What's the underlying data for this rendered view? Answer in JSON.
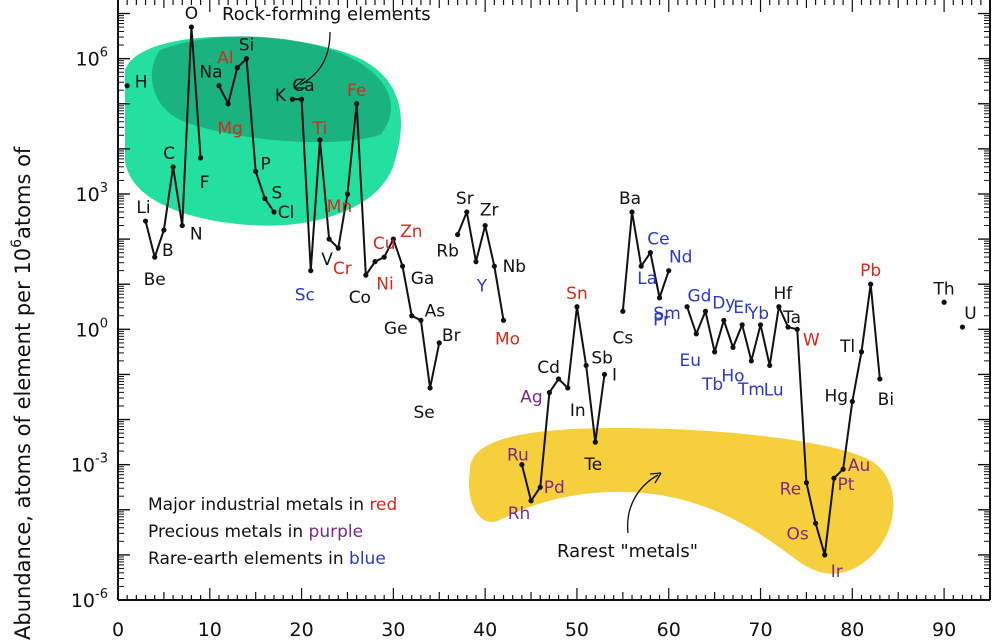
{
  "chart_data": {
    "type": "line",
    "ylabel_text": "Abundance, atoms of element per 10",
    "ylabel_sup": "6",
    "ylabel_suffix": "atoms of",
    "xlim": [
      0,
      95
    ],
    "ylim_log10": [
      -6,
      7.3
    ],
    "y_scale": "log",
    "x_ticks": [
      0,
      10,
      20,
      30,
      40,
      50,
      60,
      70,
      80,
      90
    ],
    "y_ticks": [
      {
        "base": "10",
        "exp": "6",
        "log": 6
      },
      {
        "base": "10",
        "exp": "3",
        "log": 3
      },
      {
        "base": "10",
        "exp": "0",
        "log": 0
      },
      {
        "base": "10",
        "exp": "-3",
        "log": -3
      },
      {
        "base": "10",
        "exp": "-6",
        "log": -6
      }
    ],
    "colors": {
      "industrial": "#d42a1a",
      "precious": "#7a2a8a",
      "rare_earth": "#2a3ac8",
      "other": "#111111",
      "rock_region": "#23e0a0",
      "rock_region_dark": "#17a070",
      "rare_region": "#f5cf3c"
    },
    "points": [
      {
        "z": 1,
        "sym": "H",
        "log": 5.4,
        "cat": "other"
      },
      {
        "z": 3,
        "sym": "Li",
        "log": 2.4,
        "cat": "other"
      },
      {
        "z": 4,
        "sym": "Be",
        "log": 1.6,
        "cat": "other"
      },
      {
        "z": 5,
        "sym": "B",
        "log": 2.2,
        "cat": "other"
      },
      {
        "z": 6,
        "sym": "C",
        "log": 3.6,
        "cat": "other"
      },
      {
        "z": 7,
        "sym": "N",
        "log": 2.3,
        "cat": "other"
      },
      {
        "z": 8,
        "sym": "O",
        "log": 6.7,
        "cat": "other"
      },
      {
        "z": 9,
        "sym": "F",
        "log": 3.8,
        "cat": "other"
      },
      {
        "z": 11,
        "sym": "Na",
        "log": 5.4,
        "cat": "other"
      },
      {
        "z": 12,
        "sym": "Mg",
        "log": 5.0,
        "cat": "industrial"
      },
      {
        "z": 13,
        "sym": "Al",
        "log": 5.8,
        "cat": "industrial"
      },
      {
        "z": 14,
        "sym": "Si",
        "log": 6.0,
        "cat": "other"
      },
      {
        "z": 15,
        "sym": "P",
        "log": 3.5,
        "cat": "other"
      },
      {
        "z": 16,
        "sym": "S",
        "log": 2.9,
        "cat": "other"
      },
      {
        "z": 17,
        "sym": "Cl",
        "log": 2.6,
        "cat": "other"
      },
      {
        "z": 19,
        "sym": "K",
        "log": 5.1,
        "cat": "other"
      },
      {
        "z": 20,
        "sym": "Ca",
        "log": 5.1,
        "cat": "other"
      },
      {
        "z": 21,
        "sym": "Sc",
        "log": 1.3,
        "cat": "rare_earth"
      },
      {
        "z": 22,
        "sym": "Ti",
        "log": 4.2,
        "cat": "industrial"
      },
      {
        "z": 23,
        "sym": "V",
        "log": 2.0,
        "cat": "other"
      },
      {
        "z": 24,
        "sym": "Cr",
        "log": 1.8,
        "cat": "industrial"
      },
      {
        "z": 25,
        "sym": "Mn",
        "log": 3.0,
        "cat": "industrial"
      },
      {
        "z": 26,
        "sym": "Fe",
        "log": 5.0,
        "cat": "industrial"
      },
      {
        "z": 27,
        "sym": "Co",
        "log": 1.2,
        "cat": "other"
      },
      {
        "z": 28,
        "sym": "Ni",
        "log": 1.5,
        "cat": "industrial"
      },
      {
        "z": 29,
        "sym": "Cu",
        "log": 1.6,
        "cat": "industrial"
      },
      {
        "z": 30,
        "sym": "Zn",
        "log": 2.0,
        "cat": "industrial"
      },
      {
        "z": 31,
        "sym": "Ga",
        "log": 1.4,
        "cat": "other"
      },
      {
        "z": 32,
        "sym": "Ge",
        "log": 0.3,
        "cat": "other"
      },
      {
        "z": 33,
        "sym": "As",
        "log": 0.2,
        "cat": "other"
      },
      {
        "z": 34,
        "sym": "Se",
        "log": -1.3,
        "cat": "other"
      },
      {
        "z": 35,
        "sym": "Br",
        "log": -0.3,
        "cat": "other"
      },
      {
        "z": 37,
        "sym": "Rb",
        "log": 2.1,
        "cat": "other"
      },
      {
        "z": 38,
        "sym": "Sr",
        "log": 2.6,
        "cat": "other"
      },
      {
        "z": 39,
        "sym": "Y",
        "log": 1.5,
        "cat": "rare_earth"
      },
      {
        "z": 40,
        "sym": "Zr",
        "log": 2.3,
        "cat": "other"
      },
      {
        "z": 41,
        "sym": "Nb",
        "log": 1.4,
        "cat": "other"
      },
      {
        "z": 42,
        "sym": "Mo",
        "log": 0.2,
        "cat": "industrial"
      },
      {
        "z": 44,
        "sym": "Ru",
        "log": -3.0,
        "cat": "precious"
      },
      {
        "z": 45,
        "sym": "Rh",
        "log": -3.8,
        "cat": "precious"
      },
      {
        "z": 46,
        "sym": "Pd",
        "log": -3.5,
        "cat": "precious"
      },
      {
        "z": 47,
        "sym": "Ag",
        "log": -1.4,
        "cat": "precious"
      },
      {
        "z": 48,
        "sym": "Cd",
        "log": -1.1,
        "cat": "other"
      },
      {
        "z": 49,
        "sym": "In",
        "log": -1.3,
        "cat": "other"
      },
      {
        "z": 50,
        "sym": "Sn",
        "log": 0.5,
        "cat": "industrial"
      },
      {
        "z": 51,
        "sym": "Sb",
        "log": -0.8,
        "cat": "other"
      },
      {
        "z": 52,
        "sym": "Te",
        "log": -2.5,
        "cat": "other"
      },
      {
        "z": 53,
        "sym": "I",
        "log": -1.0,
        "cat": "other"
      },
      {
        "z": 55,
        "sym": "Cs",
        "log": 0.4,
        "cat": "other"
      },
      {
        "z": 56,
        "sym": "Ba",
        "log": 2.6,
        "cat": "other"
      },
      {
        "z": 57,
        "sym": "La",
        "log": 1.4,
        "cat": "rare_earth"
      },
      {
        "z": 58,
        "sym": "Ce",
        "log": 1.7,
        "cat": "rare_earth"
      },
      {
        "z": 59,
        "sym": "Pr",
        "log": 0.7,
        "cat": "rare_earth"
      },
      {
        "z": 60,
        "sym": "Nd",
        "log": 1.3,
        "cat": "rare_earth"
      },
      {
        "z": 62,
        "sym": "Sm",
        "log": 0.5,
        "cat": "rare_earth"
      },
      {
        "z": 63,
        "sym": "Eu",
        "log": -0.1,
        "cat": "rare_earth"
      },
      {
        "z": 64,
        "sym": "Gd",
        "log": 0.4,
        "cat": "rare_earth"
      },
      {
        "z": 65,
        "sym": "Tb",
        "log": -0.5,
        "cat": "rare_earth"
      },
      {
        "z": 66,
        "sym": "Dy",
        "log": 0.2,
        "cat": "rare_earth"
      },
      {
        "z": 67,
        "sym": "Ho",
        "log": -0.4,
        "cat": "rare_earth"
      },
      {
        "z": 68,
        "sym": "Er",
        "log": 0.1,
        "cat": "rare_earth"
      },
      {
        "z": 69,
        "sym": "Tm",
        "log": -0.7,
        "cat": "rare_earth"
      },
      {
        "z": 70,
        "sym": "Yb",
        "log": 0.1,
        "cat": "rare_earth"
      },
      {
        "z": 71,
        "sym": "Lu",
        "log": -0.8,
        "cat": "rare_earth"
      },
      {
        "z": 72,
        "sym": "Hf",
        "log": 0.5,
        "cat": "other"
      },
      {
        "z": 73,
        "sym": "Ta",
        "log": 0.05,
        "cat": "other"
      },
      {
        "z": 74,
        "sym": "W",
        "log": 0.0,
        "cat": "industrial"
      },
      {
        "z": 75,
        "sym": "Re",
        "log": -3.4,
        "cat": "precious"
      },
      {
        "z": 76,
        "sym": "Os",
        "log": -4.3,
        "cat": "precious"
      },
      {
        "z": 77,
        "sym": "Ir",
        "log": -5.0,
        "cat": "precious"
      },
      {
        "z": 78,
        "sym": "Pt",
        "log": -3.3,
        "cat": "precious"
      },
      {
        "z": 79,
        "sym": "Au",
        "log": -3.1,
        "cat": "precious"
      },
      {
        "z": 80,
        "sym": "Hg",
        "log": -1.6,
        "cat": "other"
      },
      {
        "z": 81,
        "sym": "Tl",
        "log": -0.5,
        "cat": "other"
      },
      {
        "z": 82,
        "sym": "Pb",
        "log": 1.0,
        "cat": "industrial"
      },
      {
        "z": 83,
        "sym": "Bi",
        "log": -1.1,
        "cat": "other"
      },
      {
        "z": 90,
        "sym": "Th",
        "log": 0.6,
        "cat": "other"
      },
      {
        "z": 92,
        "sym": "U",
        "log": 0.05,
        "cat": "other"
      }
    ],
    "segments": [
      [
        1
      ],
      [
        3,
        4,
        5,
        6,
        7,
        8,
        9
      ],
      [
        11,
        12,
        13,
        14,
        15,
        16,
        17
      ],
      [
        19,
        20,
        21,
        22,
        23,
        24,
        25,
        26,
        27,
        28,
        29,
        30,
        31,
        32,
        33,
        34,
        35
      ],
      [
        37,
        38,
        39,
        40,
        41,
        42
      ],
      [
        44,
        45,
        46,
        47,
        48,
        49,
        50,
        51,
        52,
        53
      ],
      [
        55,
        56,
        57,
        58,
        59,
        60
      ],
      [
        62,
        63,
        64,
        65,
        66,
        67,
        68,
        69,
        70,
        71,
        72,
        73,
        74,
        75,
        76,
        77,
        78,
        79,
        80,
        81,
        82,
        83
      ],
      [
        90
      ],
      [
        92
      ]
    ],
    "annotations": [
      {
        "text": "Rock-forming elements",
        "target": "rock-region"
      },
      {
        "text": "Rarest \"metals\"",
        "target": "rare-region"
      }
    ],
    "legend": {
      "line1_prefix": "Major industrial metals in ",
      "line1_word": "red",
      "line2_prefix": "Precious metals in ",
      "line2_word": "purple",
      "line3_prefix": "Rare-earth elements in ",
      "line3_word": "blue"
    }
  }
}
